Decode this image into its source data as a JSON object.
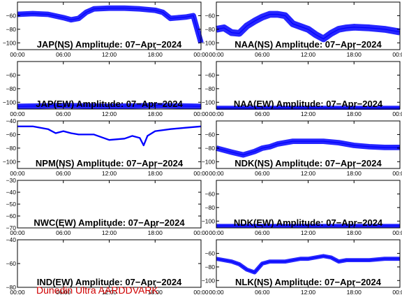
{
  "footer": "Dunedin Ultra AARDDVARK",
  "colors": {
    "series": "#0000ff",
    "footer": "#d00000",
    "axis": "#000000"
  },
  "chart_data": [
    {
      "type": "line",
      "title": "JAP(NS) Amplitude: 07-Apr-2024",
      "xticks": [
        "00:00",
        "06:00",
        "12:00",
        "18:00",
        "00:00"
      ],
      "ylim": [
        -110,
        -40
      ],
      "yticks": [
        -100,
        -80,
        -60
      ],
      "series": [
        {
          "x": [
            0,
            2,
            4,
            6,
            7,
            8,
            9,
            10,
            12,
            14,
            16,
            18,
            19,
            20,
            22,
            23,
            24
          ],
          "y": [
            -58,
            -57,
            -58,
            -63,
            -66,
            -64,
            -55,
            -50,
            -49,
            -49,
            -50,
            -52,
            -55,
            -64,
            -62,
            -60,
            -100
          ]
        }
      ]
    },
    {
      "type": "line",
      "title": "NAA(NS) Amplitude: 07-Apr-2024",
      "xticks": [
        "00:00",
        "06:00",
        "12:00",
        "18:00",
        "00:00"
      ],
      "ylim": [
        -110,
        -40
      ],
      "yticks": [
        -100,
        -80,
        -60
      ],
      "series": [
        {
          "x": [
            0,
            1,
            2,
            3,
            4,
            5,
            6,
            7,
            8,
            9,
            10,
            11,
            12,
            13,
            14,
            15,
            16,
            17,
            18,
            20,
            22,
            24
          ],
          "y": [
            -80,
            -78,
            -85,
            -86,
            -75,
            -68,
            -62,
            -58,
            -58,
            -60,
            -72,
            -76,
            -80,
            -88,
            -94,
            -86,
            -80,
            -78,
            -77,
            -78,
            -80,
            -84
          ]
        }
      ]
    },
    {
      "type": "line",
      "title": "JAP(EW) Amplitude: 07-Apr-2024",
      "xticks": [
        "00:00",
        "06:00",
        "12:00",
        "18:00",
        "00:00"
      ],
      "ylim": [
        -110,
        -40
      ],
      "yticks": [
        -100,
        -80,
        -60
      ],
      "series": [
        {
          "x": [
            0,
            6,
            12,
            18,
            24
          ],
          "y": [
            -106,
            -105,
            -106,
            -105,
            -106
          ]
        }
      ]
    },
    {
      "type": "line",
      "title": "NAA(EW) Amplitude: 07-Apr-2024",
      "xticks": [
        "00:00",
        "06:00",
        "12:00",
        "18:00",
        "00:00"
      ],
      "ylim": [
        -110,
        -40
      ],
      "yticks": [
        -100,
        -80,
        -60
      ],
      "series": [
        {
          "x": [
            0,
            6,
            12,
            18,
            24
          ],
          "y": [
            -108,
            -108,
            -108,
            -108,
            -108
          ]
        }
      ]
    },
    {
      "type": "line",
      "title": "NPM(NS) Amplitude: 07-Apr-2024",
      "xticks": [
        "00:00",
        "06:00",
        "12:00",
        "18:00",
        "00:00"
      ],
      "ylim": [
        -110,
        -40
      ],
      "yticks": [
        -100,
        -80,
        -60,
        -40
      ],
      "series": [
        {
          "x": [
            0,
            2,
            4,
            5,
            6,
            7,
            8,
            10,
            12,
            14,
            15,
            16,
            16.5,
            17,
            18,
            20,
            22,
            24
          ],
          "y": [
            -48,
            -48,
            -52,
            -58,
            -55,
            -58,
            -60,
            -60,
            -68,
            -66,
            -62,
            -65,
            -76,
            -62,
            -55,
            -52,
            -50,
            -48
          ]
        }
      ]
    },
    {
      "type": "line",
      "title": "NDK(NS) Amplitude: 07-Apr-2024",
      "xticks": [
        "00:00",
        "06:00",
        "12:00",
        "18:00",
        "00:00"
      ],
      "ylim": [
        -110,
        -40
      ],
      "yticks": [
        -100,
        -80,
        -60
      ],
      "series": [
        {
          "x": [
            0,
            2,
            3.5,
            5,
            6,
            7,
            8,
            10,
            12,
            14,
            16,
            18,
            20,
            22,
            24
          ],
          "y": [
            -80,
            -86,
            -90,
            -85,
            -80,
            -78,
            -74,
            -70,
            -70,
            -70,
            -72,
            -76,
            -78,
            -79,
            -79
          ]
        }
      ]
    },
    {
      "type": "line",
      "title": "NWC(EW) Amplitude: 07-Apr-2024",
      "xticks": [
        "00:00",
        "06:00",
        "12:00",
        "18:00",
        "00:00"
      ],
      "ylim": [
        -70,
        -30
      ],
      "yticks": [
        -70,
        -60,
        -50,
        -40,
        -30
      ],
      "series": []
    },
    {
      "type": "line",
      "title": "NDK(EW) Amplitude: 07-Apr-2024",
      "xticks": [
        "00:00",
        "06:00",
        "12:00",
        "18:00",
        "00:00"
      ],
      "ylim": [
        -110,
        -40
      ],
      "yticks": [
        -100,
        -80,
        -60
      ],
      "series": [
        {
          "x": [
            0,
            6,
            12,
            18,
            24
          ],
          "y": [
            -107,
            -107,
            -107,
            -107,
            -107
          ]
        }
      ]
    },
    {
      "type": "line",
      "title": "IND(EW) Amplitude: 07-Apr-2024",
      "xticks": [
        "00:00",
        "06:00",
        "12:00",
        "18:00",
        "00:00"
      ],
      "ylim": [
        -80,
        -40
      ],
      "yticks": [
        -80,
        -60,
        -40
      ],
      "series": []
    },
    {
      "type": "line",
      "title": "NLK(NS) Amplitude: 07-Apr-2024",
      "xticks": [
        "00:00",
        "06:00",
        "12:00",
        "18:00",
        "00:00"
      ],
      "ylim": [
        -110,
        -40
      ],
      "yticks": [
        -100,
        -80,
        -60
      ],
      "series": [
        {
          "x": [
            0,
            2,
            3,
            4,
            5,
            6,
            7,
            9,
            10,
            11,
            12,
            14,
            15,
            16,
            17,
            18,
            20,
            22,
            24
          ],
          "y": [
            -68,
            -72,
            -76,
            -84,
            -88,
            -75,
            -72,
            -72,
            -70,
            -68,
            -68,
            -64,
            -66,
            -72,
            -70,
            -70,
            -70,
            -68,
            -68
          ]
        }
      ]
    }
  ]
}
